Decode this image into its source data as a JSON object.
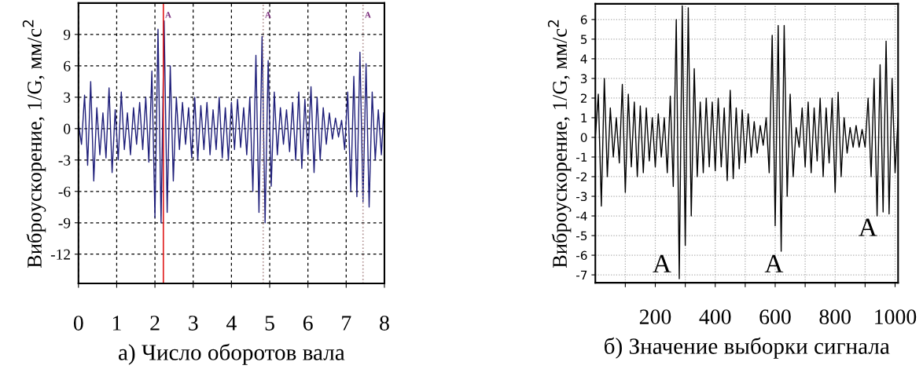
{
  "chart_data": [
    {
      "type": "line",
      "xlabel": "а) Число оборотов вала",
      "ylabel": "Виброускорение, 1/G, мм/с$^{2}$",
      "x": [
        0,
        0.08,
        0.16,
        0.24,
        0.32,
        0.4,
        0.48,
        0.56,
        0.64,
        0.72,
        0.8,
        0.88,
        0.96,
        1.04,
        1.12,
        1.2,
        1.28,
        1.36,
        1.44,
        1.52,
        1.6,
        1.68,
        1.76,
        1.84,
        1.92,
        2.0,
        2.08,
        2.16,
        2.24,
        2.32,
        2.4,
        2.48,
        2.56,
        2.64,
        2.72,
        2.8,
        2.88,
        2.96,
        3.04,
        3.12,
        3.2,
        3.28,
        3.36,
        3.44,
        3.52,
        3.6,
        3.68,
        3.76,
        3.84,
        3.92,
        4.0,
        4.08,
        4.16,
        4.24,
        4.32,
        4.4,
        4.48,
        4.56,
        4.64,
        4.72,
        4.8,
        4.88,
        4.96,
        5.04,
        5.12,
        5.2,
        5.28,
        5.36,
        5.44,
        5.52,
        5.6,
        5.68,
        5.76,
        5.84,
        5.92,
        6.0,
        6.08,
        6.16,
        6.24,
        6.32,
        6.4,
        6.48,
        6.56,
        6.64,
        6.72,
        6.8,
        6.88,
        6.96,
        7.04,
        7.12,
        7.2,
        7.28,
        7.36,
        7.44,
        7.52,
        7.6,
        7.68,
        7.76,
        7.84,
        7.92,
        7.98
      ],
      "series": [
        {
          "color": "#1f1f7a",
          "values": [
            0.5,
            -1.5,
            3.2,
            -3.5,
            4.5,
            -5.0,
            2.0,
            -2.5,
            1.5,
            -2.8,
            3.9,
            -4.2,
            1.8,
            -3.0,
            3.5,
            -2.0,
            1.5,
            -2.5,
            2.0,
            -1.5,
            2.5,
            -2.0,
            3.0,
            -3.2,
            5.5,
            -8.5,
            9.5,
            -9.0,
            10.3,
            -8.0,
            6.0,
            -5.0,
            3.0,
            -2.0,
            2.5,
            -1.5,
            2.0,
            -2.8,
            3.0,
            -3.0,
            2.2,
            -2.0,
            2.5,
            -2.5,
            1.8,
            -2.0,
            3.0,
            -2.8,
            2.0,
            -3.0,
            2.5,
            -2.0,
            2.8,
            -1.8,
            2.0,
            -2.5,
            3.0,
            -6.0,
            7.0,
            -8.0,
            8.8,
            -9.0,
            6.5,
            -5.5,
            3.5,
            -2.5,
            2.0,
            -1.5,
            1.8,
            -2.2,
            2.5,
            -3.0,
            3.5,
            -3.8,
            2.8,
            -2.5,
            4.0,
            -4.2,
            3.0,
            -3.0,
            2.0,
            -1.5,
            1.5,
            -1.0,
            1.0,
            -0.8,
            0.8,
            -2.0,
            3.5,
            -6.0,
            5.0,
            -6.5,
            7.3,
            -7.0,
            6.2,
            -7.5,
            3.5,
            -3.0,
            1.8,
            -2.5,
            1.5
          ]
        }
      ],
      "xlim": [
        0,
        8
      ],
      "xticks": [
        0,
        1,
        2,
        3,
        4,
        5,
        6,
        7,
        8
      ],
      "ylim": [
        -14.8,
        12
      ],
      "yticks": [
        -12,
        -9,
        -6,
        -3,
        0,
        3,
        6,
        9
      ],
      "grid": true,
      "line_style": "solid",
      "ref_lines": [
        {
          "axis": "x",
          "value": 2.22,
          "label": "A",
          "color": "#e02020",
          "line_style": "solid"
        },
        {
          "axis": "x",
          "value": 4.83,
          "label": "A",
          "color": "#b09090",
          "line_style": "dotted"
        },
        {
          "axis": "x",
          "value": 7.44,
          "label": "A",
          "color": "#b09090",
          "line_style": "dotted"
        }
      ]
    },
    {
      "type": "line",
      "xlabel": "б) Значение выборки сигнала",
      "ylabel": "Виброускорение, 1/G, мм/с$^{2}$",
      "x": [
        0,
        10,
        20,
        30,
        40,
        50,
        60,
        70,
        80,
        90,
        100,
        110,
        120,
        130,
        140,
        150,
        160,
        170,
        180,
        190,
        200,
        210,
        220,
        230,
        240,
        250,
        260,
        270,
        280,
        290,
        300,
        310,
        320,
        330,
        340,
        350,
        360,
        370,
        380,
        390,
        400,
        410,
        420,
        430,
        440,
        450,
        460,
        470,
        480,
        490,
        500,
        510,
        520,
        530,
        540,
        550,
        560,
        570,
        580,
        590,
        600,
        610,
        620,
        630,
        640,
        650,
        660,
        670,
        680,
        690,
        700,
        710,
        720,
        730,
        740,
        750,
        760,
        770,
        780,
        790,
        800,
        810,
        820,
        830,
        840,
        850,
        860,
        870,
        880,
        890,
        900,
        910,
        920,
        930,
        940,
        950,
        960,
        970,
        980,
        990,
        1000,
        1010
      ],
      "series": [
        {
          "color": "#000000",
          "values": [
            0,
            2.2,
            -3.5,
            3.0,
            -2.0,
            1.5,
            -1.0,
            1.0,
            -1.3,
            2.7,
            -2.8,
            2.2,
            -1.5,
            1.8,
            -2.0,
            1.6,
            -1.8,
            1.5,
            -1.2,
            1.0,
            -1.5,
            1.2,
            -1.0,
            1.0,
            -1.8,
            2.1,
            -2.5,
            6.0,
            -7.2,
            6.7,
            -5.5,
            6.6,
            -4.0,
            3.5,
            -2.0,
            1.8,
            -1.8,
            2.0,
            -1.5,
            1.8,
            -1.7,
            2.0,
            -1.5,
            1.5,
            -2.2,
            2.4,
            -2.1,
            1.5,
            -1.6,
            1.4,
            -1.3,
            1.2,
            -1.0,
            0.8,
            -0.8,
            0.6,
            -0.4,
            1.0,
            -1.8,
            5.2,
            -4.5,
            5.7,
            -5.8,
            5.7,
            -3.0,
            2.2,
            -2.0,
            0.5,
            -0.5,
            1.5,
            -1.5,
            1.8,
            -1.8,
            1.5,
            -1.2,
            2.0,
            -2.0,
            1.5,
            -1.3,
            2.0,
            -2.8,
            2.3,
            -2.0,
            1.0,
            -0.8,
            0.5,
            -0.5,
            0.6,
            -0.5,
            0.4,
            -0.5,
            2.0,
            -2.0,
            3.0,
            -4.0,
            3.7,
            -3.8,
            4.9,
            -3.9,
            3.0,
            -1.8,
            1.0
          ]
        }
      ],
      "xlim": [
        0,
        1010
      ],
      "xticks": [
        {
          "value": 100,
          "label": null
        },
        200,
        {
          "value": 300,
          "label": null
        },
        400,
        {
          "value": 500,
          "label": null
        },
        600,
        {
          "value": 700,
          "label": null
        },
        800,
        {
          "value": 900,
          "label": null
        },
        1000
      ],
      "ylim": [
        -7.4,
        6.8
      ],
      "yticks": [
        -7,
        -6,
        -5,
        -4,
        -3,
        -2,
        -1,
        0,
        1,
        2,
        3,
        4,
        5,
        6
      ],
      "grid": true,
      "line_style": "solid",
      "annotations": [
        "A",
        "A",
        "A"
      ]
    }
  ]
}
